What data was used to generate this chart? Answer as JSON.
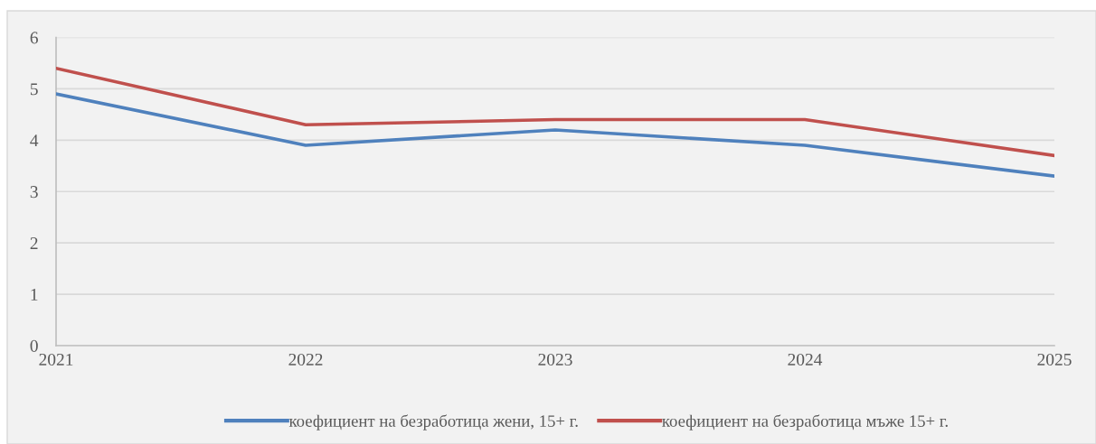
{
  "chart_data": {
    "type": "line",
    "x": [
      2021,
      2022,
      2023,
      2024,
      2025
    ],
    "xlim": [
      2021,
      2025
    ],
    "xticks": [
      2021,
      2022,
      2023,
      2024,
      2025
    ],
    "ylim": [
      0,
      6
    ],
    "yticks": [
      0,
      1,
      2,
      3,
      4,
      5,
      6
    ],
    "grid": "y",
    "legend": "bottom",
    "marker": "none",
    "line_style": "solid",
    "series": [
      {
        "name": "коефициент на безработица жени, 15+ г.",
        "color": "#4f81bd",
        "values": [
          4.9,
          3.9,
          4.2,
          3.9,
          3.3
        ]
      },
      {
        "name": "коефициент на безработица мъже 15+ г.",
        "color": "#c0504d",
        "values": [
          5.4,
          4.3,
          4.4,
          4.4,
          3.7
        ]
      }
    ]
  }
}
